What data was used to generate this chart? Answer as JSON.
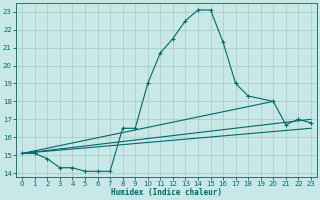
{
  "background_color": "#c8e8e8",
  "grid_color": "#a8c8c8",
  "line_color": "#006868",
  "xlabel": "Humidex (Indice chaleur)",
  "xlim": [
    -0.5,
    23.5
  ],
  "ylim": [
    13.8,
    23.5
  ],
  "yticks": [
    14,
    15,
    16,
    17,
    18,
    19,
    20,
    21,
    22,
    23
  ],
  "xticks": [
    0,
    1,
    2,
    3,
    4,
    5,
    6,
    7,
    8,
    9,
    10,
    11,
    12,
    13,
    14,
    15,
    16,
    17,
    18,
    19,
    20,
    21,
    22,
    23
  ],
  "series": [
    {
      "x": [
        0,
        20
      ],
      "y": [
        15.1,
        18.0
      ]
    },
    {
      "x": [
        0,
        23
      ],
      "y": [
        15.1,
        17.0
      ]
    },
    {
      "x": [
        0,
        23
      ],
      "y": [
        15.1,
        16.5
      ]
    },
    {
      "x": [
        0,
        1,
        2,
        3,
        4,
        5,
        6,
        7,
        8,
        9,
        10,
        11,
        12,
        13,
        14,
        15,
        16,
        17,
        18,
        20,
        21,
        22,
        23
      ],
      "y": [
        15.1,
        15.1,
        14.8,
        14.3,
        14.3,
        14.1,
        14.1,
        14.1,
        16.5,
        16.5,
        19.0,
        20.7,
        21.5,
        22.5,
        23.1,
        23.1,
        21.3,
        19.0,
        18.3,
        18.0,
        16.7,
        17.0,
        16.8
      ]
    }
  ]
}
